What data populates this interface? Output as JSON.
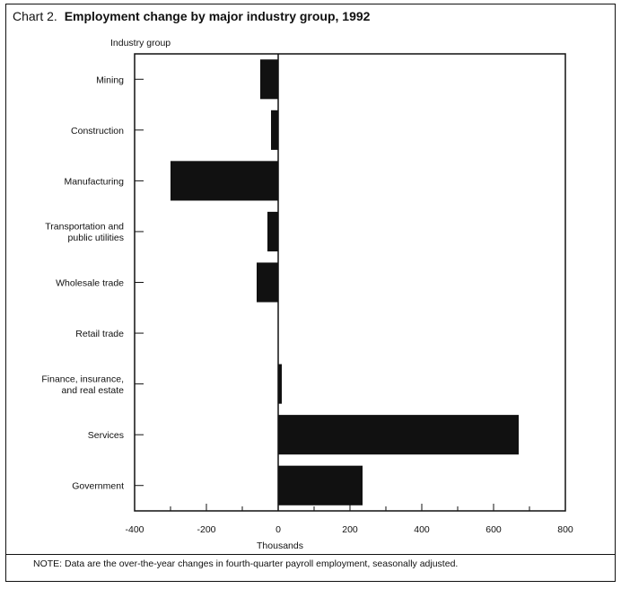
{
  "title": {
    "prefix": "Chart 2.",
    "main": "Employment change by major industry group, 1992"
  },
  "y_axis_title": "Industry group",
  "note": "NOTE: Data are the over-the-year changes in fourth-quarter payroll employment, seasonally adjusted.",
  "chart_data": {
    "type": "bar",
    "orientation": "horizontal",
    "title": "Employment change by major industry group, 1992",
    "xlabel": "Thousands",
    "ylabel": "Industry group",
    "categories": [
      [
        "Mining"
      ],
      [
        "Construction"
      ],
      [
        "Manufacturing"
      ],
      [
        "Transportation and",
        "public utilities"
      ],
      [
        "Wholesale trade"
      ],
      [
        "Retail trade"
      ],
      [
        "Finance, insurance,",
        "and  real estate"
      ],
      [
        "Services"
      ],
      [
        "Government"
      ]
    ],
    "values": [
      -50,
      -20,
      -300,
      -30,
      -60,
      0,
      10,
      670,
      235
    ],
    "xlim": [
      -400,
      800
    ],
    "xticks": [
      -400,
      -200,
      0,
      200,
      400,
      600,
      800
    ],
    "xtick_labels": [
      "-400",
      "-200",
      "0",
      "200",
      "400",
      "600",
      "800"
    ],
    "bar_color": "#111111",
    "grid": false
  }
}
